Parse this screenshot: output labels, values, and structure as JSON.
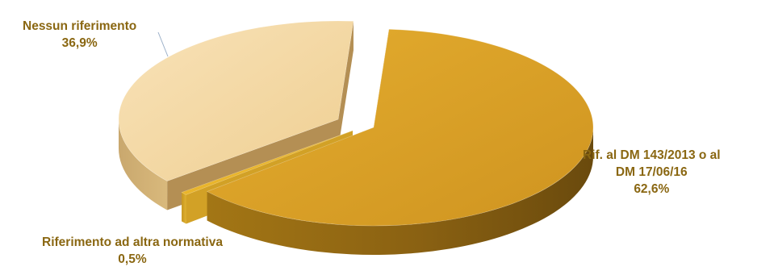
{
  "chart_data": {
    "type": "pie",
    "style": "3d-exploded",
    "title": "",
    "slices": [
      {
        "label": "Rif. al DM 143/2013 o al DM 17/06/16",
        "label_lines": [
          "Rif. al DM 143/2013 o al",
          "DM 17/06/16"
        ],
        "value": 62.6,
        "value_label": "62,6%",
        "color": "#d9a22a"
      },
      {
        "label": "Riferimento ad altra normativa",
        "label_lines": [
          "Riferimento ad altra normativa"
        ],
        "value": 0.5,
        "value_label": "0,5%",
        "color": "#e8b830"
      },
      {
        "label": "Nessun riferimento",
        "label_lines": [
          "Nessun riferimento"
        ],
        "value": 36.9,
        "value_label": "36,9%",
        "color": "#f4d9a8"
      }
    ]
  }
}
